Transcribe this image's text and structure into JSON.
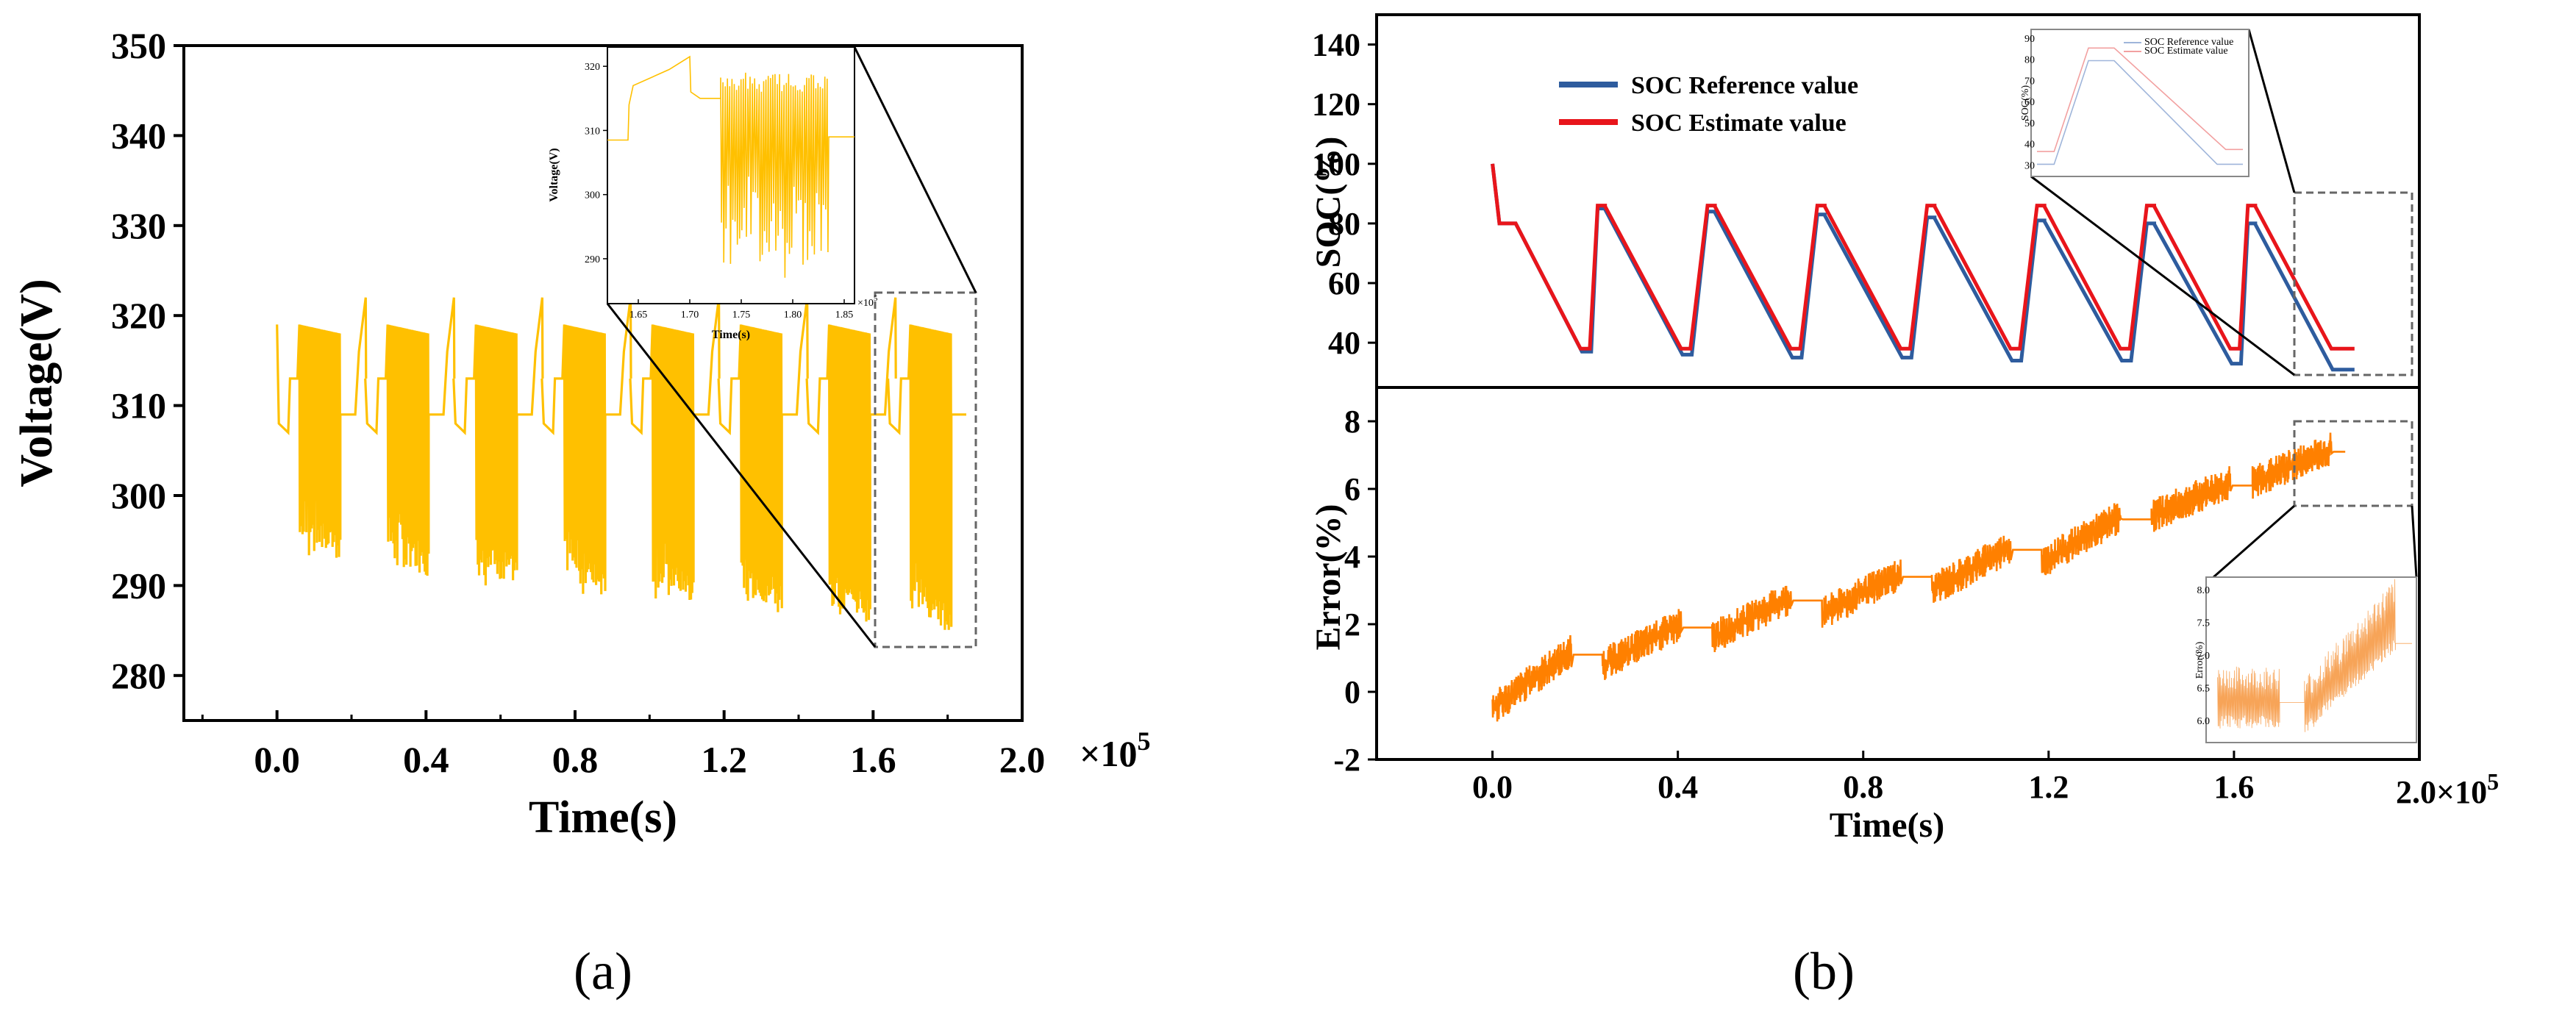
{
  "colors": {
    "voltage": "#FFC000",
    "soc_reference": "#2E5C9E",
    "soc_estimate": "#E8151B",
    "error": "#FF8000",
    "zoom_box": "#666666"
  },
  "chart_data": [
    {
      "id": "a",
      "type": "line",
      "panel_label": "(a)",
      "xlabel": "Time(s)",
      "ylabel": "Voltage(V)",
      "x_multiplier_label": "×10",
      "x_multiplier_exp": "5",
      "xlim": [
        -0.25,
        2.0
      ],
      "ylim": [
        275,
        350
      ],
      "x_ticks": [
        0.0,
        0.4,
        0.8,
        1.2,
        1.6,
        2.0
      ],
      "x_tick_labels": [
        "0.0",
        "0.4",
        "0.8",
        "1.2",
        "1.6",
        "2.0"
      ],
      "y_ticks": [
        280,
        290,
        300,
        310,
        320,
        330,
        340,
        350
      ],
      "y_tick_labels": [
        "280",
        "290",
        "300",
        "310",
        "320",
        "330",
        "340",
        "350"
      ],
      "series": [
        {
          "name": "Voltage",
          "color_key": "voltage",
          "cycle_starts": [
            0.0,
            0.237,
            0.474,
            0.711,
            0.948,
            1.185,
            1.422,
            1.64
          ],
          "rest_voltage": 313,
          "charge_peak": 322,
          "pulse_top": 319,
          "pulse_min": [
            293,
            291,
            290,
            289,
            288,
            287,
            286,
            285
          ]
        }
      ],
      "inset": {
        "ylabel": "Voltage(V)",
        "xlabel": "Time(s)",
        "x_multiplier_label": "×10",
        "x_multiplier_exp": "5",
        "xlim": [
          1.62,
          1.86
        ],
        "ylim": [
          283,
          323
        ],
        "x_ticks": [
          1.65,
          1.7,
          1.75,
          1.8,
          1.85
        ],
        "x_tick_labels": [
          "1.65",
          "1.70",
          "1.75",
          "1.80",
          "1.85"
        ],
        "y_ticks": [
          290,
          300,
          310,
          320
        ],
        "y_tick_labels": [
          "290",
          "300",
          "310",
          "320"
        ],
        "zoom_region_x": [
          1.62,
          1.86
        ],
        "zoom_region_y": [
          283,
          323
        ]
      }
    },
    {
      "id": "b-top",
      "type": "line",
      "panel_label": "(b)",
      "ylabel": "SOC(%)",
      "xlim": [
        -0.25,
        2.0
      ],
      "ylim": [
        25,
        150
      ],
      "y_ticks": [
        40,
        60,
        80,
        100,
        120,
        140
      ],
      "y_tick_labels": [
        "40",
        "60",
        "80",
        "100",
        "120",
        "140"
      ],
      "legend": [
        "SOC Reference value",
        "SOC Estimate value"
      ],
      "series": [
        {
          "name": "SOC Reference value",
          "color_key": "soc_reference",
          "cycle_high": [
            86,
            85,
            84,
            83,
            82,
            81,
            80,
            80
          ],
          "cycle_low": [
            37,
            36,
            35,
            35,
            34,
            34,
            33,
            31
          ]
        },
        {
          "name": "SOC Estimate value",
          "color_key": "soc_estimate",
          "cycle_high": [
            86,
            86,
            86,
            86,
            86,
            86,
            86,
            86
          ],
          "cycle_low": [
            38,
            38,
            38,
            38,
            38,
            38,
            38,
            38
          ]
        }
      ],
      "inset": {
        "ylabel": "SOC(%)",
        "legend": [
          "SOC Reference value",
          "SOC Estimate value"
        ],
        "y_tick_labels": [
          "30",
          "40",
          "50",
          "60",
          "70",
          "80",
          "90"
        ],
        "zoom_region_x": [
          1.62,
          1.86
        ],
        "zoom_region_y": [
          28,
          90
        ]
      }
    },
    {
      "id": "b-bottom",
      "type": "line",
      "xlabel": "Time(s)",
      "ylabel": "Error(%)",
      "x_multiplier_label": "2.0×10",
      "x_multiplier_exp": "5",
      "xlim": [
        -0.25,
        2.0
      ],
      "ylim": [
        -2,
        9
      ],
      "x_ticks": [
        0.0,
        0.4,
        0.8,
        1.2,
        1.6
      ],
      "x_tick_labels": [
        "0.0",
        "0.4",
        "0.8",
        "1.2",
        "1.6"
      ],
      "y_ticks": [
        -2,
        0,
        2,
        4,
        6,
        8
      ],
      "y_tick_labels": [
        "-2",
        "0",
        "2",
        "4",
        "6",
        "8"
      ],
      "series": [
        {
          "name": "Error",
          "color_key": "error",
          "cycle_start_error": [
            -0.5,
            0.8,
            1.6,
            2.3,
            3.0,
            3.8,
            5.2,
            6.2
          ],
          "cycle_end_error": [
            1.2,
            2.0,
            2.8,
            3.5,
            4.3,
            5.2,
            6.2,
            7.2
          ]
        }
      ],
      "inset": {
        "ylabel": "Error(%)",
        "y_tick_labels": [
          "6.0",
          "6.5",
          "7.0",
          "7.5",
          "8.0"
        ],
        "zoom_region_x": [
          1.62,
          1.86
        ],
        "zoom_region_y": [
          5.5,
          8.2
        ]
      }
    }
  ]
}
